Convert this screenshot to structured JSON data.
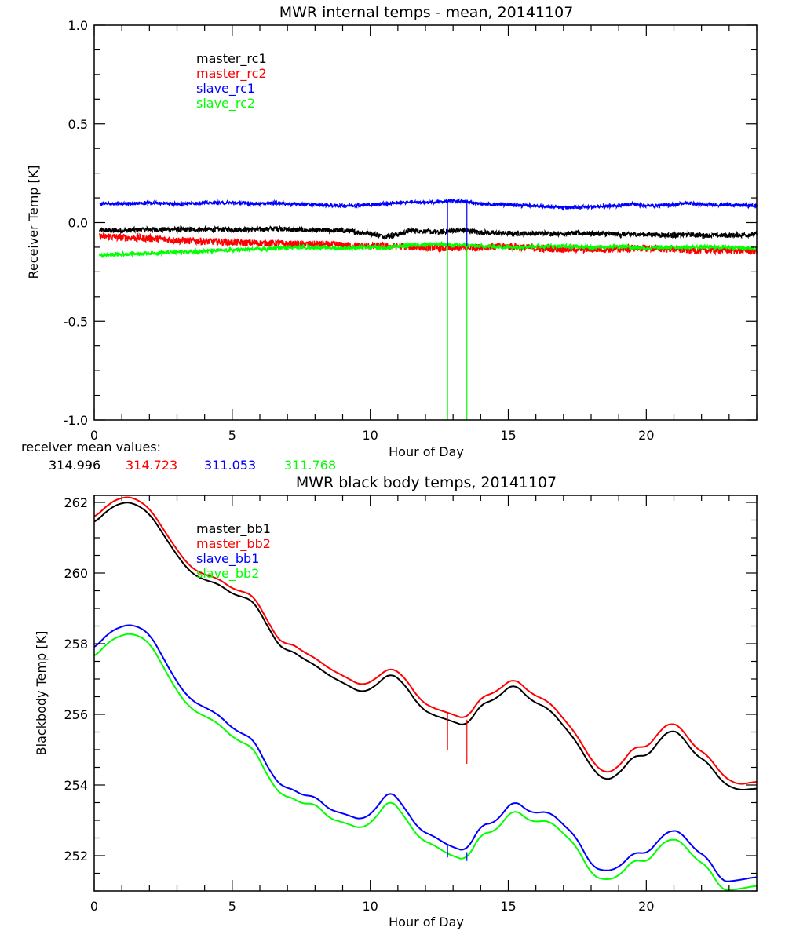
{
  "chart_data": [
    {
      "type": "line",
      "title": "MWR internal temps - mean, 20141107",
      "xlabel": "Hour of Day",
      "ylabel": "Receiver Temp [K]",
      "xlim": [
        0,
        24
      ],
      "ylim": [
        -1.0,
        1.0
      ],
      "xticks": [
        0,
        5,
        10,
        15,
        20
      ],
      "xtick_labels": [
        "0",
        "5",
        "10",
        "15",
        "20"
      ],
      "yticks": [
        -1.0,
        -0.5,
        0.0,
        0.5,
        1.0
      ],
      "ytick_labels": [
        "-1.0",
        "-0.5",
        "0.0",
        "0.5",
        "1.0"
      ],
      "grid": false,
      "legend_position": "top-left",
      "x": [
        0.2,
        1,
        2,
        3,
        4,
        5,
        6,
        6.7,
        7,
        8,
        9,
        10,
        10.5,
        11,
        11.5,
        12,
        12.5,
        13,
        13.5,
        14,
        15,
        16,
        17,
        18,
        19,
        19.5,
        20,
        21,
        21.5,
        22,
        23,
        24
      ],
      "series": [
        {
          "name": "master_rc1",
          "color": "#000000",
          "noise": 0.012,
          "values": [
            -0.04,
            -0.04,
            -0.035,
            -0.035,
            -0.035,
            -0.035,
            -0.035,
            -0.03,
            -0.035,
            -0.04,
            -0.04,
            -0.055,
            -0.07,
            -0.06,
            -0.04,
            -0.045,
            -0.05,
            -0.04,
            -0.04,
            -0.05,
            -0.055,
            -0.055,
            -0.055,
            -0.055,
            -0.06,
            -0.06,
            -0.06,
            -0.065,
            -0.06,
            -0.065,
            -0.065,
            -0.06
          ]
        },
        {
          "name": "master_rc2",
          "color": "#ff0000",
          "noise": 0.018,
          "values": [
            -0.07,
            -0.075,
            -0.08,
            -0.09,
            -0.095,
            -0.1,
            -0.105,
            -0.105,
            -0.11,
            -0.11,
            -0.115,
            -0.12,
            -0.12,
            -0.12,
            -0.125,
            -0.125,
            -0.13,
            -0.13,
            -0.13,
            -0.125,
            -0.12,
            -0.13,
            -0.135,
            -0.135,
            -0.135,
            -0.13,
            -0.13,
            -0.135,
            -0.14,
            -0.14,
            -0.14,
            -0.145
          ]
        },
        {
          "name": "slave_rc1",
          "color": "#0000ff",
          "noise": 0.008,
          "values": [
            0.095,
            0.095,
            0.1,
            0.095,
            0.1,
            0.1,
            0.095,
            0.1,
            0.095,
            0.09,
            0.085,
            0.09,
            0.095,
            0.1,
            0.105,
            0.1,
            0.105,
            0.11,
            0.105,
            0.095,
            0.09,
            0.085,
            0.075,
            0.08,
            0.085,
            0.095,
            0.085,
            0.09,
            0.1,
            0.09,
            0.09,
            0.085
          ]
        },
        {
          "name": "slave_rc2",
          "color": "#00ff00",
          "noise": 0.01,
          "values": [
            -0.165,
            -0.16,
            -0.155,
            -0.15,
            -0.145,
            -0.14,
            -0.135,
            -0.13,
            -0.125,
            -0.125,
            -0.13,
            -0.125,
            -0.13,
            -0.12,
            -0.115,
            -0.11,
            -0.11,
            -0.115,
            -0.115,
            -0.12,
            -0.125,
            -0.12,
            -0.12,
            -0.125,
            -0.12,
            -0.125,
            -0.13,
            -0.125,
            -0.125,
            -0.125,
            -0.125,
            -0.13
          ]
        }
      ],
      "spikes": [
        {
          "hour": 12.8,
          "series": "slave_rc1",
          "from": 0.1,
          "to": -0.12
        },
        {
          "hour": 13.5,
          "series": "slave_rc1",
          "from": 0.11,
          "to": -0.12
        },
        {
          "hour": 12.8,
          "series": "slave_rc2",
          "from": -0.12,
          "to": -1.0
        },
        {
          "hour": 13.5,
          "series": "slave_rc2",
          "from": -0.12,
          "to": -1.0
        }
      ],
      "annotation": {
        "label": "receiver mean values:",
        "values": [
          {
            "text": "314.996",
            "color": "#000000"
          },
          {
            "text": "314.723",
            "color": "#ff0000"
          },
          {
            "text": "311.053",
            "color": "#0000ff"
          },
          {
            "text": "311.768",
            "color": "#00ff00"
          }
        ]
      }
    },
    {
      "type": "line",
      "title": "MWR black body temps, 20141107",
      "xlabel": "Hour of Day",
      "ylabel": "Blackbody Temp [K]",
      "xlim": [
        0,
        24
      ],
      "ylim": [
        251,
        262.2
      ],
      "xticks": [
        0,
        5,
        10,
        15,
        20
      ],
      "xtick_labels": [
        "0",
        "5",
        "10",
        "15",
        "20"
      ],
      "yticks": [
        252,
        254,
        256,
        258,
        260,
        262
      ],
      "ytick_labels": [
        "252",
        "254",
        "256",
        "258",
        "260",
        "262"
      ],
      "grid": false,
      "legend_position": "top-left",
      "x": [
        0,
        0.5,
        1,
        1.4,
        2,
        2.5,
        3,
        3.5,
        4,
        4.5,
        5,
        5.5,
        5.8,
        6.2,
        6.8,
        7.1,
        7.5,
        8,
        8.5,
        9,
        9.7,
        10.2,
        10.7,
        11.2,
        11.8,
        12.2,
        12.8,
        13.5,
        14,
        14.5,
        15.2,
        15.8,
        16.5,
        17.5,
        18,
        18.5,
        19,
        19.6,
        20,
        20.5,
        20.9,
        21.3,
        21.7,
        22.3,
        22.7,
        23.3,
        24
      ],
      "series": [
        {
          "name": "master_bb1",
          "color": "#000000",
          "values": [
            261.4,
            261.8,
            262.0,
            262.0,
            261.7,
            261.1,
            260.5,
            260.0,
            259.8,
            259.7,
            259.4,
            259.3,
            259.2,
            258.6,
            257.8,
            257.85,
            257.6,
            257.4,
            257.1,
            256.9,
            256.6,
            256.8,
            257.2,
            256.9,
            256.2,
            256.0,
            255.85,
            255.65,
            256.3,
            256.4,
            256.9,
            256.4,
            256.15,
            255.2,
            254.5,
            254.1,
            254.3,
            254.9,
            254.75,
            255.3,
            255.6,
            255.4,
            254.9,
            254.6,
            254.1,
            253.85,
            253.9
          ]
        },
        {
          "name": "master_bb2",
          "color": "#ff0000",
          "values": [
            261.55,
            261.95,
            262.15,
            262.15,
            261.85,
            261.25,
            260.65,
            260.15,
            259.95,
            259.85,
            259.55,
            259.45,
            259.35,
            258.75,
            257.95,
            258.05,
            257.8,
            257.6,
            257.3,
            257.1,
            256.8,
            257.0,
            257.35,
            257.1,
            256.4,
            256.2,
            256.05,
            255.85,
            256.5,
            256.6,
            257.05,
            256.6,
            256.35,
            255.4,
            254.7,
            254.3,
            254.5,
            255.15,
            255.0,
            255.55,
            255.8,
            255.6,
            255.1,
            254.8,
            254.3,
            254.0,
            254.1
          ]
        },
        {
          "name": "slave_bb1",
          "color": "#0000ff",
          "values": [
            257.85,
            258.3,
            258.5,
            258.55,
            258.3,
            257.6,
            256.9,
            256.4,
            256.2,
            256.0,
            255.6,
            255.4,
            255.3,
            254.6,
            253.9,
            253.95,
            253.7,
            253.7,
            253.3,
            253.2,
            253.0,
            253.3,
            253.9,
            253.4,
            252.7,
            252.6,
            252.3,
            252.1,
            252.9,
            252.9,
            253.6,
            253.2,
            253.25,
            252.5,
            251.7,
            251.55,
            251.65,
            252.15,
            252.0,
            252.5,
            252.75,
            252.65,
            252.2,
            251.9,
            251.25,
            251.3,
            251.4
          ]
        },
        {
          "name": "slave_bb2",
          "color": "#00ff00",
          "values": [
            257.6,
            258.05,
            258.25,
            258.3,
            258.05,
            257.35,
            256.65,
            256.15,
            255.95,
            255.75,
            255.35,
            255.15,
            255.05,
            254.35,
            253.65,
            253.7,
            253.45,
            253.5,
            253.05,
            252.95,
            252.75,
            253.05,
            253.65,
            253.15,
            252.45,
            252.35,
            252.05,
            251.85,
            252.65,
            252.65,
            253.35,
            252.95,
            253.0,
            252.25,
            251.45,
            251.3,
            251.4,
            251.95,
            251.75,
            252.3,
            252.5,
            252.4,
            251.95,
            251.65,
            251.0,
            251.05,
            251.15
          ]
        }
      ],
      "spikes": [
        {
          "hour": 12.8,
          "series": "master_bb2",
          "from": 256.05,
          "to": 255.0
        },
        {
          "hour": 13.5,
          "series": "master_bb2",
          "from": 255.85,
          "to": 254.6
        },
        {
          "hour": 12.8,
          "series": "slave_bb1",
          "from": 252.3,
          "to": 251.95
        },
        {
          "hour": 13.5,
          "series": "slave_bb1",
          "from": 252.1,
          "to": 251.85
        }
      ]
    }
  ]
}
